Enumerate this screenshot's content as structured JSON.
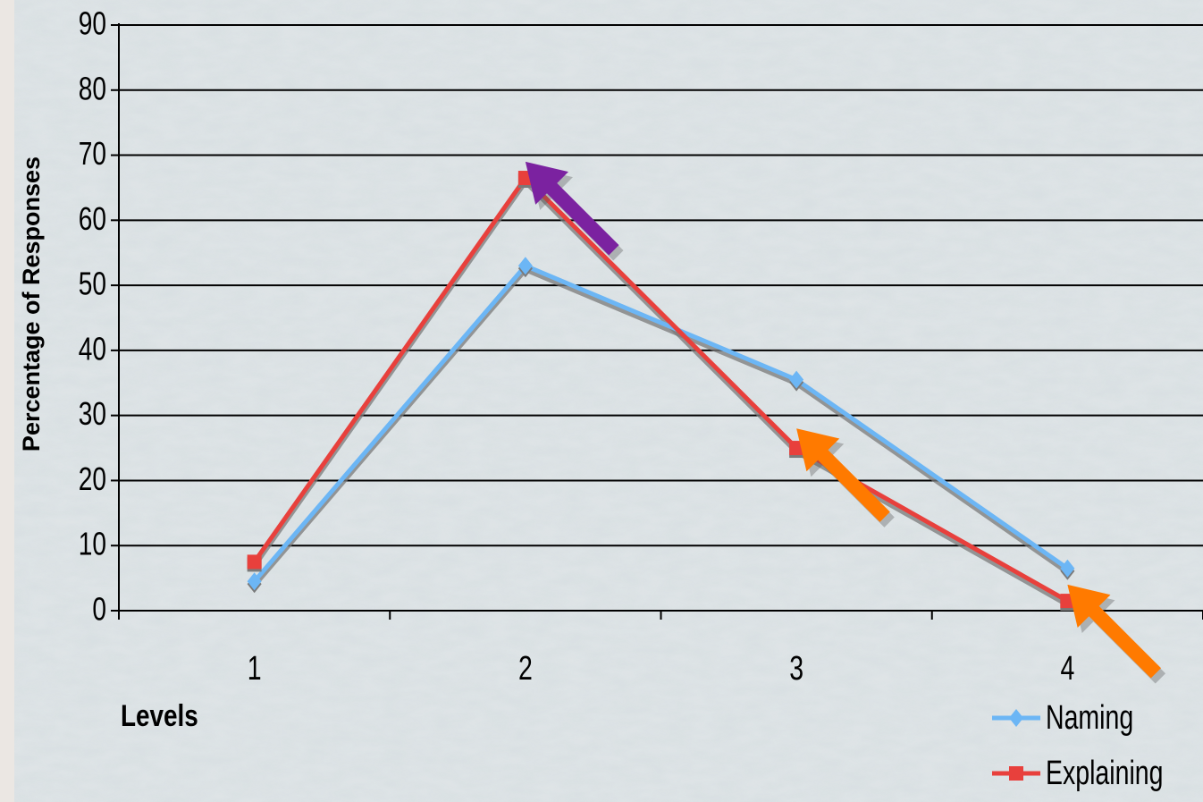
{
  "chart_data": {
    "type": "line",
    "xlabel": "Levels",
    "ylabel": "Percentage of Responses",
    "categories": [
      "1",
      "2",
      "3",
      "4"
    ],
    "ylim": [
      0,
      90
    ],
    "yticks": [
      0,
      10,
      20,
      30,
      40,
      50,
      60,
      70,
      80,
      90
    ],
    "grid": "horizontal",
    "legend_position": "bottom-right",
    "series": [
      {
        "name": "Naming",
        "values": [
          4.5,
          53,
          35.5,
          6.5
        ],
        "color": "#6cb6f5",
        "marker": "diamond"
      },
      {
        "name": "Explaining",
        "values": [
          7.5,
          66.5,
          25,
          1.5
        ],
        "color": "#e8403c",
        "marker": "square"
      }
    ],
    "annotations": [
      {
        "type": "arrow",
        "color": "#7b22a0",
        "points_to": {
          "category": "2",
          "value": 69
        }
      },
      {
        "type": "arrow",
        "color": "#ff7a00",
        "points_to": {
          "category": "3",
          "value": 28
        }
      },
      {
        "type": "arrow",
        "color": "#ff7a00",
        "points_to": {
          "category": "4",
          "value": 4
        }
      }
    ]
  }
}
